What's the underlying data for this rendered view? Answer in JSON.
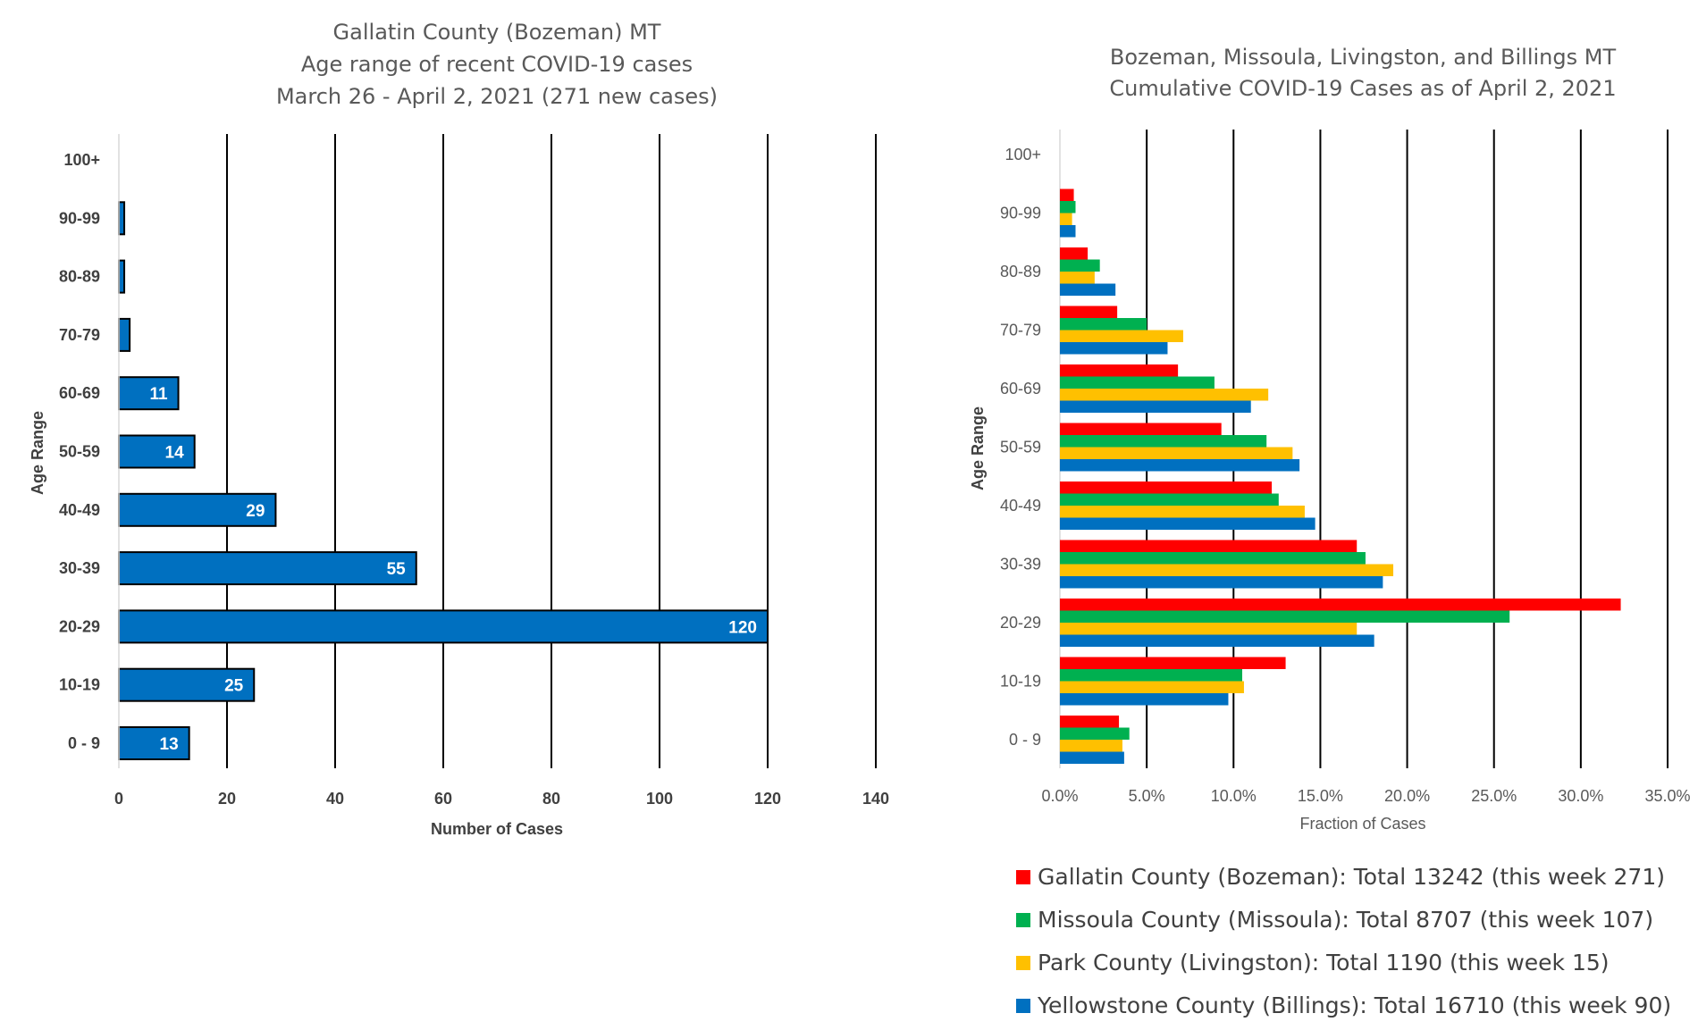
{
  "chart_data": [
    {
      "type": "bar",
      "orientation": "horizontal",
      "title_lines": [
        "Gallatin County (Bozeman) MT",
        "Age range of recent COVID-19 cases",
        "March 26 - April 2, 2021 (271 new cases)"
      ],
      "xlabel": "Number of Cases",
      "ylabel": "Age Range",
      "categories": [
        "0 - 9",
        "10-19",
        "20-29",
        "30-39",
        "40-49",
        "50-59",
        "60-69",
        "70-79",
        "80-89",
        "90-99",
        "100+"
      ],
      "values": [
        13,
        25,
        120,
        55,
        29,
        14,
        11,
        2,
        1,
        1,
        0
      ],
      "data_labels": [
        "13",
        "25",
        "120",
        "55",
        "29",
        "14",
        "11",
        "",
        "",
        "",
        ""
      ],
      "xlim": [
        0,
        140
      ],
      "x_ticks": [
        0,
        20,
        40,
        60,
        80,
        100,
        120,
        140
      ],
      "x_tick_labels": [
        "0",
        "20",
        "40",
        "60",
        "80",
        "100",
        "120",
        "140"
      ],
      "grid": "vertical major gridlines",
      "bar_color": "#0070C0"
    },
    {
      "type": "bar",
      "orientation": "horizontal",
      "title_lines": [
        "Bozeman, Missoula, Livingston, and Billings MT",
        "Cumulative COVID-19 Cases as of April 2, 2021"
      ],
      "xlabel": "Fraction of Cases",
      "ylabel": "Age Range",
      "categories": [
        "0 - 9",
        "10-19",
        "20-29",
        "30-39",
        "40-49",
        "50-59",
        "60-69",
        "70-79",
        "80-89",
        "90-99",
        "100+"
      ],
      "xlim": [
        0,
        0.35
      ],
      "x_ticks": [
        0,
        0.05,
        0.1,
        0.15,
        0.2,
        0.25,
        0.3,
        0.35
      ],
      "x_tick_labels": [
        "0.0%",
        "5.0%",
        "10.0%",
        "15.0%",
        "20.0%",
        "25.0%",
        "30.0%",
        "35.0%"
      ],
      "grid": "vertical major gridlines",
      "legend_position": "bottom",
      "series": [
        {
          "name": "Gallatin County (Bozeman): Total 13242 (this week 271)",
          "color": "#FF0000",
          "values": [
            0.034,
            0.13,
            0.323,
            0.171,
            0.122,
            0.093,
            0.068,
            0.033,
            0.016,
            0.008,
            0
          ]
        },
        {
          "name": "Missoula County (Missoula): Total 8707 (this week 107)",
          "color": "#00B050",
          "values": [
            0.04,
            0.105,
            0.259,
            0.176,
            0.126,
            0.119,
            0.089,
            0.05,
            0.023,
            0.009,
            0
          ]
        },
        {
          "name": "Park County (Livingston): Total 1190 (this week 15)",
          "color": "#FFC000",
          "values": [
            0.036,
            0.106,
            0.171,
            0.192,
            0.141,
            0.134,
            0.12,
            0.071,
            0.02,
            0.007,
            0
          ]
        },
        {
          "name": "Yellowstone County (Billings): Total 16710 (this week 90)",
          "color": "#0070C0",
          "values": [
            0.037,
            0.097,
            0.181,
            0.186,
            0.147,
            0.138,
            0.11,
            0.062,
            0.032,
            0.009,
            0
          ]
        }
      ]
    }
  ]
}
